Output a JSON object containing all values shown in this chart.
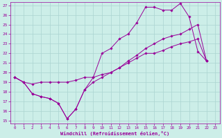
{
  "xlabel": "Windchill (Refroidissement éolien,°C)",
  "background_color": "#cceee8",
  "grid_color": "#aad4d0",
  "line_color": "#990099",
  "xlim": [
    -0.5,
    23.5
  ],
  "ylim": [
    14.7,
    27.3
  ],
  "xticks": [
    0,
    1,
    2,
    3,
    4,
    5,
    6,
    7,
    8,
    9,
    10,
    11,
    12,
    13,
    14,
    15,
    16,
    17,
    18,
    19,
    20,
    21,
    22,
    23
  ],
  "yticks": [
    15,
    16,
    17,
    18,
    19,
    20,
    21,
    22,
    23,
    24,
    25,
    26,
    27
  ],
  "series": [
    {
      "x": [
        0,
        1,
        2,
        3,
        4,
        5,
        6,
        7,
        8,
        9,
        10,
        11,
        12,
        13,
        14,
        15,
        16,
        17,
        18,
        19,
        20,
        21,
        22
      ],
      "y": [
        19.5,
        19.0,
        17.8,
        17.5,
        17.3,
        16.8,
        15.2,
        16.2,
        18.2,
        19.0,
        19.5,
        20.0,
        20.5,
        21.0,
        21.5,
        22.0,
        22.0,
        22.3,
        22.7,
        23.0,
        23.2,
        23.5,
        21.2
      ]
    },
    {
      "x": [
        0,
        1,
        2,
        3,
        4,
        5,
        6,
        7,
        8,
        9,
        10,
        11,
        12,
        13,
        14,
        15,
        16,
        17,
        18,
        19,
        20,
        21,
        22
      ],
      "y": [
        19.5,
        19.0,
        18.8,
        19.0,
        19.0,
        19.0,
        19.0,
        19.2,
        19.5,
        19.5,
        19.8,
        20.0,
        20.5,
        21.2,
        21.8,
        22.5,
        23.0,
        23.5,
        23.8,
        24.0,
        24.5,
        25.0,
        21.2
      ]
    },
    {
      "x": [
        0,
        1,
        2,
        3,
        4,
        5,
        6,
        7,
        8,
        9,
        10,
        11,
        12,
        13,
        14,
        15,
        16,
        17,
        18,
        19,
        20,
        21,
        22
      ],
      "y": [
        19.5,
        19.0,
        17.8,
        17.5,
        17.3,
        16.8,
        15.2,
        16.2,
        18.2,
        19.5,
        22.0,
        22.5,
        23.5,
        24.0,
        25.2,
        26.8,
        26.8,
        26.5,
        26.5,
        27.2,
        25.8,
        22.2,
        21.2
      ]
    }
  ]
}
